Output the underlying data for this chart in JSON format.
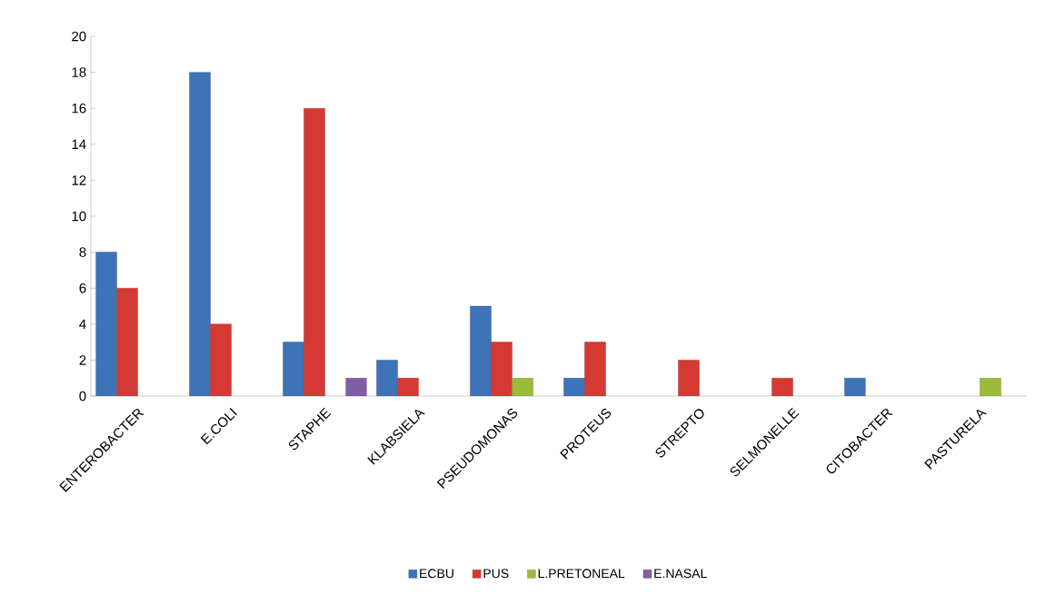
{
  "chart_data": {
    "type": "bar",
    "categories": [
      "ENTEROBACTER",
      "E.COLI",
      "STAPHE",
      "KLABSIELA",
      "PSEUDOMONAS",
      "PROTEUS",
      "STREPTO",
      "SELMONELLE",
      "CITOBACTER",
      "PASTURELA"
    ],
    "series": [
      {
        "name": "ECBU",
        "color": "#3f73b8",
        "values": [
          8,
          18,
          3,
          2,
          5,
          1,
          null,
          null,
          1,
          null
        ]
      },
      {
        "name": "PUS",
        "color": "#d43a33",
        "values": [
          6,
          4,
          16,
          1,
          3,
          3,
          2,
          1,
          null,
          null
        ]
      },
      {
        "name": "L.PRETONEAL",
        "color": "#9bbb3a",
        "values": [
          null,
          null,
          null,
          null,
          1,
          null,
          null,
          null,
          null,
          1
        ]
      },
      {
        "name": "E.NASAL",
        "color": "#7f5ea6",
        "values": [
          null,
          null,
          1,
          null,
          null,
          null,
          null,
          null,
          null,
          null
        ]
      }
    ],
    "ylim": [
      0,
      20
    ],
    "yticks": [
      0,
      2,
      4,
      6,
      8,
      10,
      12,
      14,
      16,
      18,
      20
    ],
    "grid": false,
    "legend": "bottom"
  }
}
